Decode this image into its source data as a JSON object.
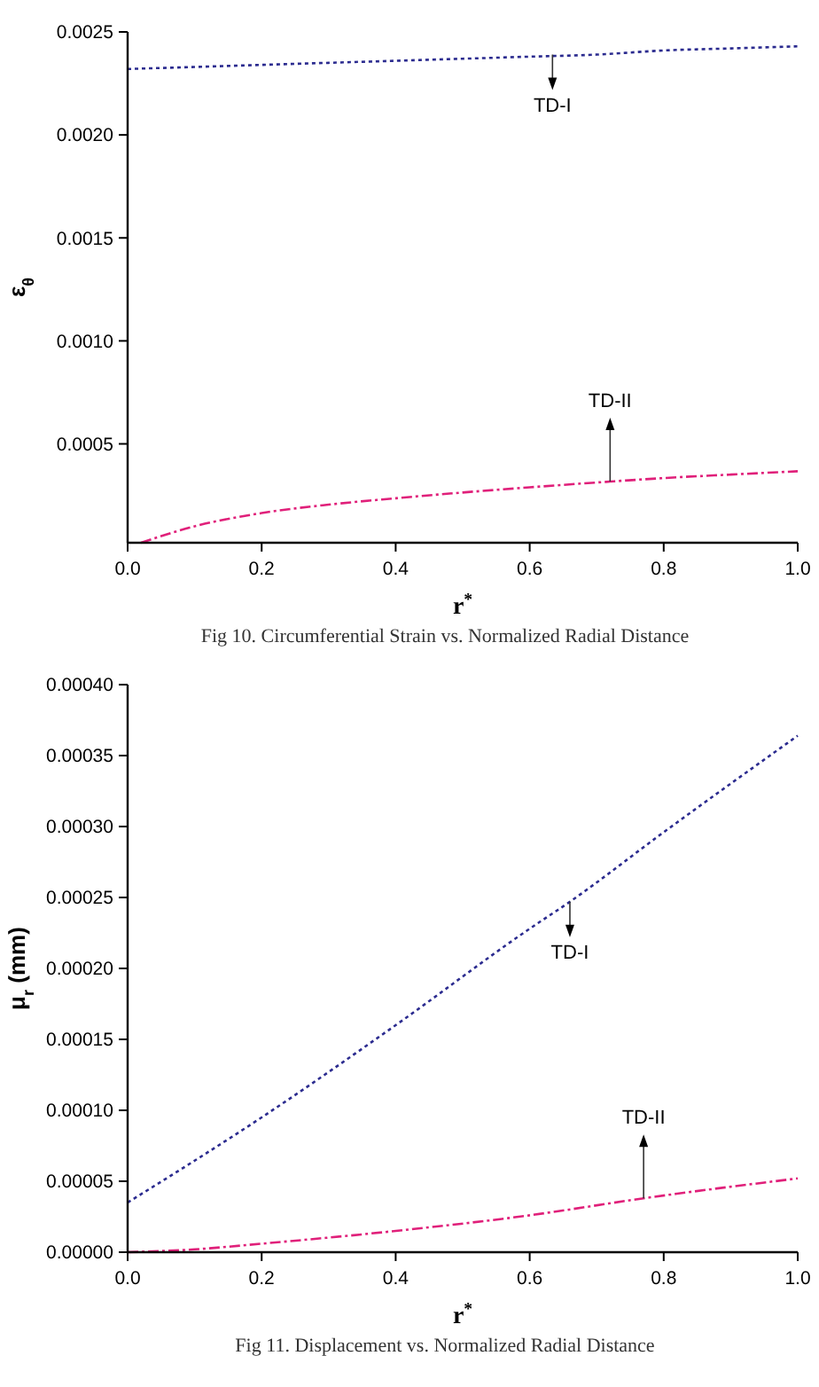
{
  "chart_data": [
    {
      "type": "line",
      "xlabel": "r$^{*}$",
      "ylabel": "ε$_{θ}$",
      "x": [
        0,
        0.1,
        0.2,
        0.3,
        0.4,
        0.5,
        0.6,
        0.7,
        0.8,
        0.9,
        1.0
      ],
      "series": [
        {
          "color": "#2b2b8f",
          "line_style": "dotted",
          "values": [
            0.00232,
            0.00233,
            0.00234,
            0.00235,
            0.00236,
            0.00237,
            0.00238,
            0.00239,
            0.00241,
            0.00242,
            0.00243
          ]
        },
        {
          "color": "#e0207a",
          "line_style": "dashed",
          "x": [
            0.02,
            0.1,
            0.2,
            0.3,
            0.4,
            0.5,
            0.6,
            0.72,
            0.8,
            0.9,
            1.0
          ],
          "values": [
            2e-05,
            0.0001,
            0.000164,
            0.000205,
            0.000236,
            0.000264,
            0.000289,
            0.000317,
            0.000334,
            0.000351,
            0.000367
          ]
        }
      ],
      "xlim": [
        0,
        1
      ],
      "xticks": [
        {
          "value": 0,
          "label": "0.0"
        },
        {
          "value": 0.2,
          "label": "0.2"
        },
        {
          "value": 0.4,
          "label": "0.4"
        },
        {
          "value": 0.6,
          "label": "0.6"
        },
        {
          "value": 0.8,
          "label": "0.8"
        },
        {
          "value": 1,
          "label": "1.0"
        }
      ],
      "ylim": [
        2e-05,
        0.0025
      ],
      "yticks": [
        {
          "value": 0.0005,
          "label": "0.0005"
        },
        {
          "value": 0.001,
          "label": "0.0010"
        },
        {
          "value": 0.0015,
          "label": "0.0015"
        },
        {
          "value": 0.002,
          "label": "0.0020"
        },
        {
          "value": 0.0025,
          "label": "0.0025"
        }
      ],
      "grid": false,
      "annotations": [
        {
          "text": "TD-I",
          "x": 0.634,
          "y": 0.00239
        },
        {
          "text": "TD-II",
          "x": 0.72,
          "y": 0.000317
        },
        "Fig 10. Circumferential Strain vs. Normalized Radial Distance"
      ]
    },
    {
      "type": "line",
      "xlabel": "r$^{*}$",
      "ylabel": "μ$_{r}$ (mm)",
      "x": [
        0,
        0.2,
        0.4,
        0.6,
        0.66,
        0.8,
        1.0
      ],
      "series": [
        {
          "color": "#2b2b8f",
          "line_style": "dotted",
          "values": [
            3.5e-05,
            9.5e-05,
            0.00016,
            0.000228,
            0.000247,
            0.000296,
            0.000364
          ]
        },
        {
          "color": "#e0207a",
          "line_style": "dashed",
          "x": [
            0,
            0.1,
            0.2,
            0.4,
            0.6,
            0.77,
            1.0
          ],
          "values": [
            0,
            2e-06,
            6e-06,
            1.5e-05,
            2.6e-05,
            3.8e-05,
            5.2e-05
          ]
        }
      ],
      "xlim": [
        0,
        1
      ],
      "xticks": [
        {
          "value": 0,
          "label": "0.0"
        },
        {
          "value": 0.2,
          "label": "0.2"
        },
        {
          "value": 0.4,
          "label": "0.4"
        },
        {
          "value": 0.6,
          "label": "0.6"
        },
        {
          "value": 0.8,
          "label": "0.8"
        },
        {
          "value": 1,
          "label": "1.0"
        }
      ],
      "ylim": [
        0,
        0.0004
      ],
      "yticks": [
        {
          "value": 0,
          "label": "0.00000"
        },
        {
          "value": 5e-05,
          "label": "0.00005"
        },
        {
          "value": 0.0001,
          "label": "0.00010"
        },
        {
          "value": 0.00015,
          "label": "0.00015"
        },
        {
          "value": 0.0002,
          "label": "0.00020"
        },
        {
          "value": 0.00025,
          "label": "0.00025"
        },
        {
          "value": 0.0003,
          "label": "0.00030"
        },
        {
          "value": 0.00035,
          "label": "0.00035"
        },
        {
          "value": 0.0004,
          "label": "0.00040"
        }
      ],
      "grid": false,
      "annotations": [
        {
          "text": "TD-I",
          "x": 0.66,
          "y": 0.000247
        },
        {
          "text": "TD-II",
          "x": 0.77,
          "y": 3.8e-05
        },
        "Fig 11. Displacement vs. Normalized Radial Distance"
      ]
    }
  ]
}
